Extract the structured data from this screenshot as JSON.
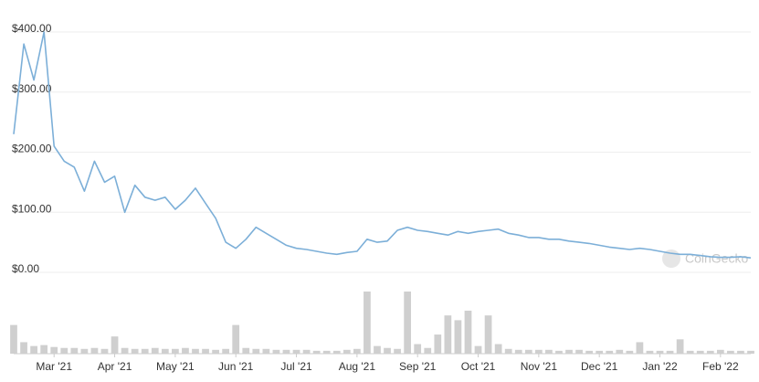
{
  "chart_data": {
    "type": "line",
    "watermark": "CoinGecko",
    "categories": [
      null,
      null,
      null,
      null,
      "Mar '21",
      null,
      null,
      null,
      null,
      null,
      "Apr '21",
      null,
      null,
      null,
      null,
      null,
      "May '21",
      null,
      null,
      null,
      null,
      null,
      "Jun '21",
      null,
      null,
      null,
      null,
      null,
      "Jul '21",
      null,
      null,
      null,
      null,
      null,
      "Aug '21",
      null,
      null,
      null,
      null,
      null,
      "Sep '21",
      null,
      null,
      null,
      null,
      null,
      "Oct '21",
      null,
      null,
      null,
      null,
      null,
      "Nov '21",
      null,
      null,
      null,
      null,
      null,
      "Dec '21",
      null,
      null,
      null,
      null,
      null,
      "Jan '22",
      null,
      null,
      null,
      null,
      null,
      "Feb '22",
      null,
      null,
      null
    ],
    "values": [
      230,
      380,
      320,
      400,
      210,
      185,
      175,
      135,
      185,
      150,
      160,
      100,
      145,
      125,
      120,
      125,
      105,
      120,
      140,
      115,
      90,
      50,
      40,
      55,
      75,
      65,
      55,
      45,
      40,
      38,
      35,
      32,
      30,
      33,
      35,
      55,
      50,
      52,
      70,
      75,
      70,
      68,
      65,
      62,
      68,
      65,
      68,
      70,
      72,
      65,
      62,
      58,
      58,
      55,
      55,
      52,
      50,
      48,
      45,
      42,
      40,
      38,
      40,
      38,
      35,
      32,
      30,
      30,
      28,
      26,
      25,
      25,
      26,
      24
    ],
    "color": "#7cafd8",
    "volume_values": [
      30,
      12,
      8,
      9,
      7,
      6,
      6,
      5,
      6,
      5,
      18,
      6,
      5,
      5,
      6,
      5,
      5,
      6,
      5,
      5,
      4,
      5,
      30,
      6,
      5,
      5,
      4,
      4,
      4,
      4,
      3,
      3,
      3,
      4,
      5,
      65,
      8,
      6,
      5,
      65,
      10,
      6,
      20,
      40,
      35,
      45,
      8,
      40,
      10,
      5,
      4,
      4,
      4,
      4,
      3,
      4,
      4,
      3,
      3,
      3,
      4,
      3,
      12,
      3,
      3,
      3,
      15,
      3,
      3,
      3,
      4,
      3,
      3,
      3
    ],
    "volume_color": "#cfcfcf",
    "ylim": [
      0,
      400
    ],
    "yticks": [
      {
        "value": 0,
        "label": "$0.00"
      },
      {
        "value": 100,
        "label": "$100.00"
      },
      {
        "value": 200,
        "label": "$200.00"
      },
      {
        "value": 300,
        "label": "$300.00"
      },
      {
        "value": 400,
        "label": "$400.00"
      }
    ],
    "grid": true
  }
}
